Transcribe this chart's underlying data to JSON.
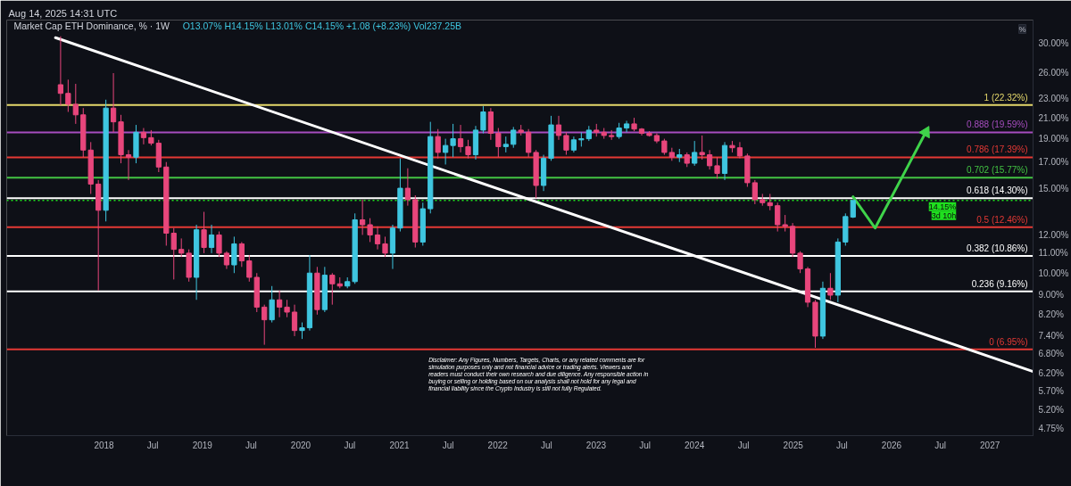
{
  "chart_data": {
    "type": "candlestick",
    "title": "Market Cap ETH Dominance, % · 1W",
    "subtitle": "O13.07% H14.15% L13.01% C14.15% +1.08 (+8.23%) Vol237.25B",
    "ylabel": "%",
    "annotations": [
      "Aug 14, 2025 14:31 UTC",
      "Disclaimer: Any Figures, Numbers, Targets, Charts, or any related comments are for simulation purposes only and not financial advice or trading alerts. Viewers and readers must conduct their own research and due diligence. Any responsible action in buying or selling or holding based on our analysis shall not hold for any legal and financial liability since the Crypto Industry is still not fully Regulated."
    ],
    "log": true,
    "xlim": [
      "2017-01-05",
      "2027-06-10"
    ],
    "ylim": [
      4.6,
      33.5
    ],
    "xticks": [
      {
        "value": "2018-01-01",
        "label": "2018"
      },
      {
        "value": "2018-07-01",
        "label": "Jul"
      },
      {
        "value": "2019-01-01",
        "label": "2019"
      },
      {
        "value": "2019-07-01",
        "label": "Jul"
      },
      {
        "value": "2020-01-01",
        "label": "2020"
      },
      {
        "value": "2020-07-01",
        "label": "Jul"
      },
      {
        "value": "2021-01-01",
        "label": "2021"
      },
      {
        "value": "2021-07-01",
        "label": "Jul"
      },
      {
        "value": "2022-01-01",
        "label": "2022"
      },
      {
        "value": "2022-07-01",
        "label": "Jul"
      },
      {
        "value": "2023-01-01",
        "label": "2023"
      },
      {
        "value": "2023-07-01",
        "label": "Jul"
      },
      {
        "value": "2024-01-01",
        "label": "2024"
      },
      {
        "value": "2024-07-01",
        "label": "Jul"
      },
      {
        "value": "2025-01-01",
        "label": "2025"
      },
      {
        "value": "2025-07-01",
        "label": "Jul"
      },
      {
        "value": "2026-01-01",
        "label": "2026"
      },
      {
        "value": "2026-07-01",
        "label": "Jul"
      },
      {
        "value": "2027-01-01",
        "label": "2027"
      }
    ],
    "yticks": [
      {
        "value": 4.75,
        "label": "4.75%"
      },
      {
        "value": 5.2,
        "label": "5.20%"
      },
      {
        "value": 5.7,
        "label": "5.70%"
      },
      {
        "value": 6.2,
        "label": "6.20%"
      },
      {
        "value": 6.8,
        "label": "6.80%"
      },
      {
        "value": 7.4,
        "label": "7.40%"
      },
      {
        "value": 8.2,
        "label": "8.20%"
      },
      {
        "value": 9,
        "label": "9.00%"
      },
      {
        "value": 10,
        "label": "10.00%"
      },
      {
        "value": 11,
        "label": "11.00%"
      },
      {
        "value": 12,
        "label": "12.00%"
      },
      {
        "value": 15,
        "label": "15.00%"
      },
      {
        "value": 17,
        "label": "17.00%"
      },
      {
        "value": 19,
        "label": "19.00%"
      },
      {
        "value": 21,
        "label": "21.00%"
      },
      {
        "value": 23,
        "label": "23.00%"
      },
      {
        "value": 26,
        "label": "26.00%"
      },
      {
        "value": 30,
        "label": "30.00%"
      }
    ],
    "ref_lines": [
      {
        "axis": "y",
        "value": 22.32,
        "label": "1 (22.32%)",
        "color": "#e6d96b"
      },
      {
        "axis": "y",
        "value": 19.59,
        "label": "0.888 (19.59%)",
        "color": "#a64dbf"
      },
      {
        "axis": "y",
        "value": 17.39,
        "label": "0.786 (17.39%)",
        "color": "#e53935"
      },
      {
        "axis": "y",
        "value": 15.77,
        "label": "0.702 (15.77%)",
        "color": "#43c443"
      },
      {
        "axis": "y",
        "value": 14.3,
        "label": "0.618 (14.30%)",
        "color": "#ffffff"
      },
      {
        "axis": "y",
        "value": 14.15,
        "label": "14.15%\n3d 10h",
        "color": "#1fe01f",
        "line_style": "dotted"
      },
      {
        "axis": "y",
        "value": 12.46,
        "label": "0.5 (12.46%)",
        "color": "#e53935"
      },
      {
        "axis": "y",
        "value": 10.86,
        "label": "0.382 (10.86%)",
        "color": "#ffffff"
      },
      {
        "axis": "y",
        "value": 9.16,
        "label": "0.236 (9.16%)",
        "color": "#ffffff"
      },
      {
        "axis": "y",
        "value": 6.95,
        "label": "0 (6.95%)",
        "color": "#e53935"
      }
    ],
    "series": [
      {
        "type": "line",
        "color": "#ffffff",
        "x": [
          "2017-07-05",
          "2027-06-10"
        ],
        "values": [
          30.8,
          6.25
        ]
      },
      {
        "type": "line",
        "color": "#3fd34a",
        "x": [
          "2025-08-11",
          "2025-11-01",
          "2026-05-08"
        ],
        "values": [
          14.4,
          12.4,
          19.6
        ]
      }
    ],
    "x": [
      "2017-07-24",
      "2017-08-21",
      "2017-09-18",
      "2017-10-16",
      "2017-11-13",
      "2017-12-11",
      "2018-01-08",
      "2018-02-05",
      "2018-03-05",
      "2018-04-02",
      "2018-04-30",
      "2018-05-28",
      "2018-06-25",
      "2018-07-23",
      "2018-08-20",
      "2018-09-17",
      "2018-10-15",
      "2018-11-12",
      "2018-12-10",
      "2019-01-07",
      "2019-02-04",
      "2019-03-04",
      "2019-04-01",
      "2019-04-29",
      "2019-05-27",
      "2019-06-24",
      "2019-07-22",
      "2019-08-19",
      "2019-09-16",
      "2019-10-14",
      "2019-11-11",
      "2019-12-09",
      "2020-01-06",
      "2020-02-03",
      "2020-03-02",
      "2020-03-30",
      "2020-04-27",
      "2020-05-25",
      "2020-06-22",
      "2020-07-20",
      "2020-08-17",
      "2020-09-14",
      "2020-10-12",
      "2020-11-09",
      "2020-12-07",
      "2021-01-04",
      "2021-02-01",
      "2021-03-01",
      "2021-03-29",
      "2021-04-26",
      "2021-05-24",
      "2021-06-21",
      "2021-07-19",
      "2021-08-16",
      "2021-09-13",
      "2021-10-11",
      "2021-11-08",
      "2021-12-06",
      "2022-01-03",
      "2022-01-31",
      "2022-02-28",
      "2022-03-28",
      "2022-04-25",
      "2022-05-23",
      "2022-06-20",
      "2022-07-18",
      "2022-08-15",
      "2022-09-12",
      "2022-10-10",
      "2022-11-07",
      "2022-12-05",
      "2023-01-02",
      "2023-01-30",
      "2023-02-27",
      "2023-03-27",
      "2023-04-24",
      "2023-05-22",
      "2023-06-19",
      "2023-07-17",
      "2023-08-14",
      "2023-09-11",
      "2023-10-09",
      "2023-11-06",
      "2023-12-04",
      "2024-01-01",
      "2024-01-29",
      "2024-02-26",
      "2024-03-25",
      "2024-04-22",
      "2024-05-20",
      "2024-06-17",
      "2024-07-15",
      "2024-08-12",
      "2024-09-09",
      "2024-10-07",
      "2024-11-04",
      "2024-12-02",
      "2024-12-30",
      "2025-01-27",
      "2025-02-24",
      "2025-03-24",
      "2025-04-21",
      "2025-05-19",
      "2025-06-16",
      "2025-07-14",
      "2025-08-11"
    ],
    "ohlc": [
      [
        24.6,
        31.0,
        22.3,
        23.6
      ],
      [
        23.6,
        25.2,
        21.6,
        22.4
      ],
      [
        22.4,
        24.7,
        20.4,
        21.3
      ],
      [
        21.3,
        22.0,
        17.4,
        18.0
      ],
      [
        18.0,
        18.7,
        14.6,
        15.3
      ],
      [
        15.3,
        15.6,
        9.2,
        13.5
      ],
      [
        13.5,
        22.9,
        12.8,
        22.0
      ],
      [
        22.0,
        26.0,
        19.6,
        20.6
      ],
      [
        20.6,
        21.3,
        16.9,
        17.6
      ],
      [
        17.6,
        18.0,
        15.6,
        17.4
      ],
      [
        17.4,
        20.3,
        16.9,
        19.6
      ],
      [
        19.6,
        20.0,
        18.5,
        19.1
      ],
      [
        19.1,
        19.8,
        18.4,
        18.6
      ],
      [
        18.6,
        18.9,
        16.2,
        16.6
      ],
      [
        16.6,
        17.0,
        11.4,
        12.1
      ],
      [
        12.1,
        12.4,
        9.7,
        11.2
      ],
      [
        11.2,
        11.8,
        10.8,
        11.0
      ],
      [
        11.0,
        11.2,
        9.6,
        9.8
      ],
      [
        9.8,
        12.6,
        8.8,
        12.3
      ],
      [
        12.3,
        13.4,
        11.0,
        11.3
      ],
      [
        11.3,
        12.6,
        11.0,
        12.0
      ],
      [
        12.0,
        12.2,
        10.8,
        11.0
      ],
      [
        11.0,
        11.1,
        10.2,
        10.4
      ],
      [
        10.4,
        11.9,
        10.0,
        11.5
      ],
      [
        11.5,
        11.6,
        10.3,
        10.6
      ],
      [
        10.6,
        10.9,
        9.6,
        9.8
      ],
      [
        9.8,
        10.0,
        8.3,
        8.5
      ],
      [
        8.5,
        8.6,
        7.1,
        8.0
      ],
      [
        8.0,
        9.4,
        7.9,
        8.8
      ],
      [
        8.8,
        9.2,
        8.1,
        8.5
      ],
      [
        8.5,
        8.8,
        8.1,
        8.3
      ],
      [
        8.3,
        8.6,
        7.4,
        7.6
      ],
      [
        7.6,
        7.9,
        7.3,
        7.7
      ],
      [
        7.7,
        10.9,
        7.6,
        10.0
      ],
      [
        10.0,
        10.3,
        8.2,
        8.4
      ],
      [
        8.4,
        10.3,
        8.3,
        9.9
      ],
      [
        9.9,
        10.0,
        8.6,
        9.5
      ],
      [
        9.5,
        9.8,
        9.3,
        9.4
      ],
      [
        9.4,
        9.8,
        9.3,
        9.6
      ],
      [
        9.6,
        13.3,
        9.5,
        12.9
      ],
      [
        12.9,
        14.2,
        12.0,
        12.6
      ],
      [
        12.6,
        13.0,
        11.6,
        12.0
      ],
      [
        12.0,
        12.5,
        11.2,
        11.5
      ],
      [
        11.5,
        11.9,
        10.8,
        11.0
      ],
      [
        11.0,
        12.6,
        10.2,
        12.4
      ],
      [
        12.4,
        17.3,
        12.2,
        15.0
      ],
      [
        15.0,
        16.5,
        13.8,
        14.2
      ],
      [
        14.2,
        14.5,
        11.3,
        11.6
      ],
      [
        11.6,
        14.0,
        11.4,
        13.6
      ],
      [
        13.6,
        20.6,
        13.3,
        19.2
      ],
      [
        19.2,
        19.9,
        17.3,
        17.8
      ],
      [
        17.8,
        19.0,
        16.8,
        18.4
      ],
      [
        18.4,
        20.4,
        17.4,
        19.0
      ],
      [
        19.0,
        20.3,
        17.8,
        18.3
      ],
      [
        18.3,
        18.9,
        17.3,
        17.6
      ],
      [
        17.6,
        20.2,
        17.2,
        19.8
      ],
      [
        19.8,
        22.2,
        19.5,
        21.6
      ],
      [
        21.6,
        22.0,
        18.9,
        19.5
      ],
      [
        19.5,
        20.0,
        17.4,
        18.3
      ],
      [
        18.3,
        19.2,
        17.8,
        18.5
      ],
      [
        18.5,
        20.1,
        18.2,
        19.8
      ],
      [
        19.8,
        20.3,
        19.3,
        19.6
      ],
      [
        19.6,
        19.9,
        17.4,
        17.8
      ],
      [
        17.8,
        18.0,
        14.3,
        15.2
      ],
      [
        15.2,
        17.6,
        14.8,
        17.3
      ],
      [
        17.3,
        21.2,
        17.1,
        20.3
      ],
      [
        20.3,
        21.2,
        18.9,
        19.3
      ],
      [
        19.3,
        19.6,
        17.6,
        18.0
      ],
      [
        18.0,
        19.2,
        17.8,
        18.9
      ],
      [
        18.9,
        19.6,
        18.3,
        19.0
      ],
      [
        19.0,
        20.2,
        18.8,
        19.8
      ],
      [
        19.8,
        20.4,
        19.2,
        19.6
      ],
      [
        19.6,
        20.0,
        19.0,
        19.3
      ],
      [
        19.3,
        19.8,
        18.9,
        19.2
      ],
      [
        19.2,
        20.5,
        19.0,
        20.0
      ],
      [
        20.0,
        20.7,
        19.6,
        20.4
      ],
      [
        20.4,
        21.0,
        19.7,
        19.9
      ],
      [
        19.9,
        20.0,
        19.3,
        19.5
      ],
      [
        19.5,
        19.7,
        19.2,
        19.3
      ],
      [
        19.3,
        19.5,
        18.6,
        18.8
      ],
      [
        18.8,
        19.0,
        17.6,
        17.8
      ],
      [
        17.8,
        18.2,
        17.1,
        17.4
      ],
      [
        17.4,
        18.1,
        17.0,
        17.6
      ],
      [
        17.6,
        17.8,
        16.6,
        16.9
      ],
      [
        16.9,
        18.8,
        16.7,
        17.8
      ],
      [
        17.8,
        19.3,
        17.2,
        17.6
      ],
      [
        17.6,
        18.0,
        16.4,
        16.7
      ],
      [
        16.7,
        17.4,
        15.7,
        16.1
      ],
      [
        16.1,
        18.7,
        15.6,
        18.4
      ],
      [
        18.4,
        18.8,
        17.8,
        18.2
      ],
      [
        18.2,
        18.7,
        17.3,
        17.5
      ],
      [
        17.5,
        17.7,
        15.1,
        15.4
      ],
      [
        15.4,
        15.6,
        13.9,
        14.2
      ],
      [
        14.2,
        14.6,
        13.8,
        14.0
      ],
      [
        14.0,
        14.6,
        13.5,
        13.8
      ],
      [
        13.8,
        14.0,
        12.2,
        12.6
      ],
      [
        12.6,
        13.2,
        12.2,
        12.5
      ],
      [
        12.5,
        12.7,
        10.8,
        11.0
      ],
      [
        11.0,
        11.1,
        10.0,
        10.2
      ],
      [
        10.2,
        10.3,
        8.5,
        8.7
      ],
      [
        8.7,
        8.8,
        7.0,
        7.4
      ],
      [
        7.4,
        9.6,
        7.3,
        9.3
      ],
      [
        9.3,
        10.0,
        8.8,
        9.0
      ],
      [
        9.0,
        11.8,
        8.7,
        11.6
      ],
      [
        11.6,
        13.3,
        11.4,
        13.1
      ],
      [
        13.07,
        14.15,
        13.01,
        14.15
      ]
    ]
  }
}
